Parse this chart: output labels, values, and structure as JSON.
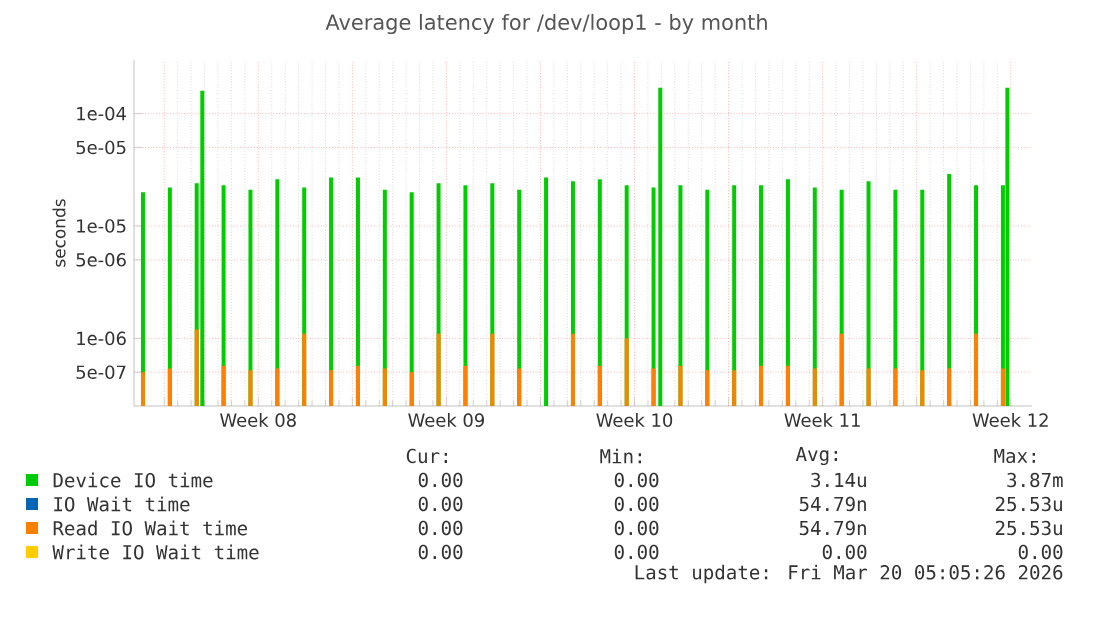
{
  "chart_data": {
    "type": "bar",
    "title": "Average latency for /dev/loop1 - by month",
    "ylabel": "seconds",
    "x": [
      "2026-02-15T05:00",
      "2026-02-16T05:00",
      "2026-02-17T05:00",
      "2026-02-17T10:00",
      "2026-02-18T05:00",
      "2026-02-19T05:00",
      "2026-02-20T05:00",
      "2026-02-21T05:00",
      "2026-02-22T05:00",
      "2026-02-23T05:00",
      "2026-02-24T05:00",
      "2026-02-25T05:00",
      "2026-02-26T05:00",
      "2026-02-27T05:00",
      "2026-02-28T05:00",
      "2026-03-01T05:00",
      "2026-03-02T05:00",
      "2026-03-03T05:00",
      "2026-03-04T05:00",
      "2026-03-05T05:00",
      "2026-03-06T05:00",
      "2026-03-06T11:00",
      "2026-03-07T05:00",
      "2026-03-08T05:00",
      "2026-03-09T05:00",
      "2026-03-10T05:00",
      "2026-03-11T05:00",
      "2026-03-12T05:00",
      "2026-03-13T05:00",
      "2026-03-14T05:00",
      "2026-03-15T05:00",
      "2026-03-16T05:00",
      "2026-03-17T05:00",
      "2026-03-18T05:00",
      "2026-03-19T05:00",
      "2026-03-19T09:00"
    ],
    "series": [
      {
        "name": "Device IO time",
        "color": "#00cc00",
        "values": [
          2e-05,
          2.2e-05,
          2.4e-05,
          0.00016,
          2.3e-05,
          2.1e-05,
          2.6e-05,
          2.2e-05,
          2.7e-05,
          2.7e-05,
          2.1e-05,
          2e-05,
          2.4e-05,
          2.3e-05,
          2.4e-05,
          2.1e-05,
          2.7e-05,
          2.5e-05,
          2.6e-05,
          2.3e-05,
          2.2e-05,
          0.00017,
          2.3e-05,
          2.1e-05,
          2.3e-05,
          2.3e-05,
          2.6e-05,
          2.2e-05,
          2.1e-05,
          2.5e-05,
          2.1e-05,
          2.1e-05,
          2.9e-05,
          2.3e-05,
          2.3e-05,
          0.00017
        ]
      },
      {
        "name": "IO Wait time",
        "color": "#0066b3",
        "values": [
          null,
          null,
          null,
          null,
          null,
          null,
          null,
          null,
          null,
          null,
          null,
          null,
          null,
          null,
          null,
          null,
          null,
          null,
          null,
          null,
          null,
          null,
          null,
          null,
          null,
          null,
          null,
          null,
          null,
          null,
          null,
          null,
          null,
          null,
          null,
          null
        ]
      },
      {
        "name": "Read IO Wait time",
        "color": "#ff8000",
        "values": [
          5e-07,
          5.4e-07,
          1.2e-06,
          null,
          5.7e-07,
          5.2e-07,
          5.4e-07,
          1.1e-06,
          5.2e-07,
          5.7e-07,
          5.4e-07,
          5e-07,
          1.1e-06,
          5.7e-07,
          1.1e-06,
          5.4e-07,
          null,
          1.1e-06,
          5.7e-07,
          1e-06,
          5.4e-07,
          null,
          5.7e-07,
          5.2e-07,
          5.2e-07,
          5.7e-07,
          5.7e-07,
          5.4e-07,
          1.1e-06,
          5.4e-07,
          5.4e-07,
          5.2e-07,
          5.4e-07,
          1.1e-06,
          5.4e-07,
          null
        ]
      },
      {
        "name": "Write IO Wait time",
        "color": "#ffcc00",
        "values": [
          null,
          null,
          null,
          null,
          null,
          null,
          null,
          null,
          null,
          null,
          null,
          null,
          null,
          null,
          null,
          null,
          null,
          null,
          null,
          null,
          null,
          null,
          null,
          null,
          null,
          null,
          null,
          null,
          null,
          null,
          null,
          null,
          null,
          null,
          null,
          null
        ]
      }
    ],
    "xlim": [
      "2026-02-14T21:00",
      "2026-03-20T07:00"
    ],
    "xticks": [
      {
        "value": "2026-02-16",
        "label": null
      },
      {
        "value": "2026-02-19T12:00",
        "label": "Week 08"
      },
      {
        "value": "2026-02-23",
        "label": null
      },
      {
        "value": "2026-02-26T12:00",
        "label": "Week 09"
      },
      {
        "value": "2026-03-02",
        "label": null
      },
      {
        "value": "2026-03-05T12:00",
        "label": "Week 10"
      },
      {
        "value": "2026-03-09",
        "label": null
      },
      {
        "value": "2026-03-12T12:00",
        "label": "Week 11"
      },
      {
        "value": "2026-03-16",
        "label": null
      },
      {
        "value": "2026-03-19T12:00",
        "label": "Week 12"
      }
    ],
    "ylim": [
      2.5e-07,
      0.0003
    ],
    "yticks": [
      {
        "value": 5e-07,
        "label": "5e-07"
      },
      {
        "value": 1e-06,
        "label": "1e-06"
      },
      {
        "value": 5e-06,
        "label": "5e-06"
      },
      {
        "value": 1e-05,
        "label": "1e-05"
      },
      {
        "value": 5e-05,
        "label": "5e-05"
      },
      {
        "value": 0.0001,
        "label": "1e-04"
      }
    ],
    "log": "y",
    "grid": true,
    "legend": "bottom",
    "annotations": [
      "Cur:",
      "Min:",
      "Avg:",
      "Max:",
      "0.00",
      "0.00",
      "3.14u",
      "3.87m",
      "0.00",
      "0.00",
      "54.79n",
      "25.53u",
      "0.00",
      "0.00",
      "54.79n",
      "25.53u",
      "0.00",
      "0.00",
      "0.00",
      "0.00",
      "Last update: Fri Mar 20 05:05:26 2026"
    ]
  }
}
